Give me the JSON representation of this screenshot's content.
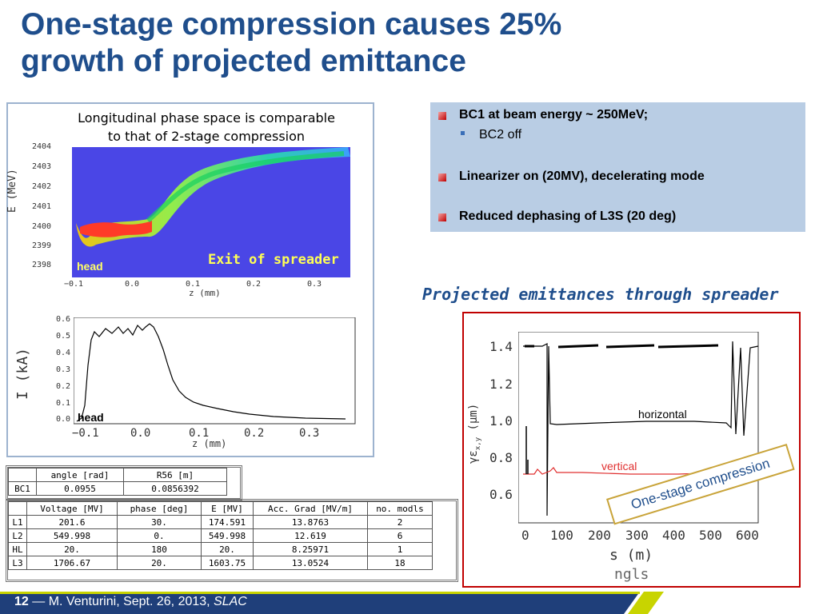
{
  "title": {
    "line1": "One-stage compression causes 25%",
    "line2": "growth of projected emittance"
  },
  "left_panel": {
    "caption_line1": "Longitudinal phase space is comparable",
    "caption_line2": "to that of 2-stage compression",
    "top_plot": {
      "overlay_label": "Exit of spreader",
      "head_label": "head",
      "ylabel": "E (MeV)",
      "xlabel": "z (mm)",
      "yticks": [
        "2404",
        "2403",
        "2402",
        "2401",
        "2400",
        "2399",
        "2398"
      ],
      "xticks": [
        "−0.1",
        "0.0",
        "0.1",
        "0.2",
        "0.3"
      ]
    },
    "bottom_plot": {
      "head_label": "head",
      "ylabel": "I (kA)",
      "xlabel": "z (mm)",
      "yticks": [
        "0.6",
        "0.5",
        "0.4",
        "0.3",
        "0.2",
        "0.1",
        "0.0"
      ],
      "xticks": [
        "−0.1",
        "0.0",
        "0.1",
        "0.2",
        "0.3"
      ]
    }
  },
  "bullets": {
    "item1": "BC1 at beam energy ~ 250MeV;",
    "item1_sub": "BC2 off",
    "item2": "Linearizer on (20MV),  decelerating mode",
    "item3": "Reduced dephasing of L3S (20 deg)",
    "bullet_color": "#c00000"
  },
  "emittance": {
    "title": "Projected emittances through spreader",
    "ylabel": "γε",
    "ylabel_sub": "x,y",
    "ylabel_unit": "(μm)",
    "xlabel": "s (m)",
    "footer_label": "ngls",
    "yticks": [
      "1.4",
      "1.2",
      "1.0",
      "0.8",
      "0.6"
    ],
    "xticks": [
      "0",
      "100",
      "200",
      "300",
      "400",
      "500",
      "600"
    ],
    "series_horizontal": "horizontal",
    "series_vertical": "vertical",
    "horizontal_color": "#000000",
    "vertical_color": "#e03030",
    "callout": "One-stage compression"
  },
  "table_bc": {
    "headers": [
      "",
      "angle [rad]",
      "R56 [m]"
    ],
    "rows": [
      [
        "BC1",
        "0.0955",
        "0.0856392"
      ]
    ]
  },
  "table_linac": {
    "headers": [
      "",
      "Voltage [MV]",
      "phase [deg]",
      "E [MV]",
      "Acc. Grad [MV/m]",
      "no. modls"
    ],
    "rows": [
      [
        "L1",
        "201.6",
        "30.",
        "174.591",
        "13.8763",
        "2"
      ],
      [
        "L2",
        "549.998",
        "0.",
        "549.998",
        "12.619",
        "6"
      ],
      [
        "HL",
        "20.",
        "180",
        "20.",
        "8.25971",
        "1"
      ],
      [
        "L3",
        "1706.67",
        "20.",
        "1603.75",
        "13.0524",
        "18"
      ]
    ]
  },
  "footer": {
    "page": "12",
    "dash": "—",
    "author": "M. Venturini, Sept. 26, 2013,",
    "org": "SLAC",
    "bar_color": "#1f3f7a",
    "accent_color": "#c8d400"
  }
}
